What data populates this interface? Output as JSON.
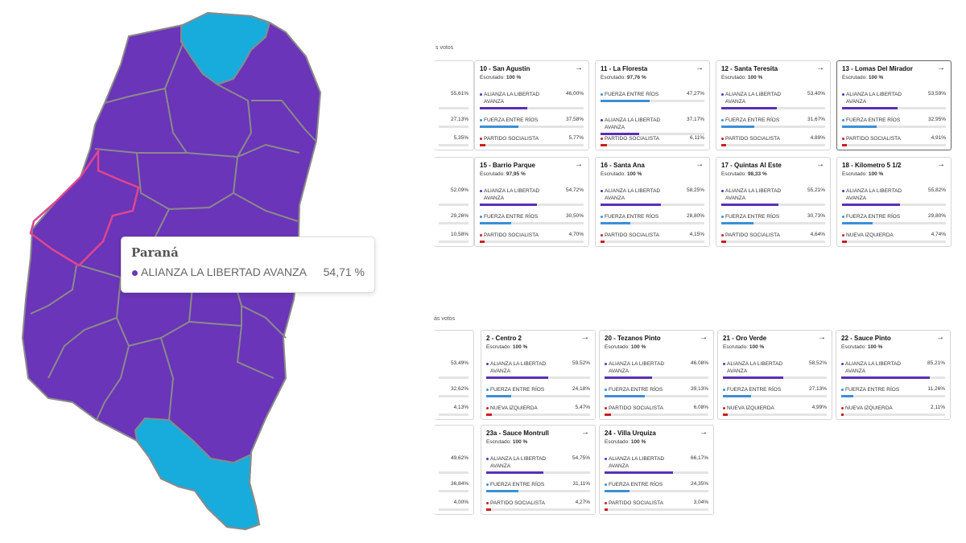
{
  "map": {
    "colors": {
      "purple": "#6a35b8",
      "cyan": "#17acdc",
      "border": "#8a8a8a",
      "highlight": "#e0458e"
    },
    "tooltip": {
      "title": "Paraná",
      "party": "ALIANZA LA LIBERTAD AVANZA",
      "pct": "54,71 %"
    }
  },
  "parties": {
    "lla": {
      "label": "ALIANZA LA LIBERTAD AVANZA",
      "color": "#5a2fb5"
    },
    "fer": {
      "label": "FUERZA ENTRE RÍOS",
      "color": "#3c8fd6"
    },
    "ps": {
      "label": "PARTIDO SOCIALISTA",
      "color": "#c9201f"
    },
    "ni": {
      "label": "NUEVA IZQUIERDA",
      "color": "#c9201f"
    }
  },
  "sections": [
    {
      "label": "s votos"
    },
    {
      "label": "ás votos"
    }
  ],
  "cards": [
    {
      "title": "",
      "sub_label": "",
      "sub_value": "",
      "partial": true,
      "rows": [
        {
          "p": "lla",
          "pct": "55,61%",
          "v": 55.61
        },
        {
          "p": "fer",
          "pct": "27,13%",
          "v": 27.13
        },
        {
          "p": "ps",
          "pct": "5,35%",
          "v": 5.35
        }
      ]
    },
    {
      "title": "10 - San Agustin",
      "sub_label": "Escrutado:",
      "sub_value": "100 %",
      "rows": [
        {
          "p": "lla",
          "pct": "46,00%",
          "v": 46.0
        },
        {
          "p": "fer",
          "pct": "37,58%",
          "v": 37.58
        },
        {
          "p": "ps",
          "pct": "5,77%",
          "v": 5.77
        }
      ]
    },
    {
      "title": "11 - La Floresta",
      "sub_label": "Escrutado:",
      "sub_value": "97,76 %",
      "rows": [
        {
          "p": "fer",
          "pct": "47,27%",
          "v": 47.27
        },
        {
          "p": "lla",
          "pct": "37,17%",
          "v": 37.17
        },
        {
          "p": "ps",
          "pct": "6,11%",
          "v": 6.11
        }
      ]
    },
    {
      "title": "12 - Santa Teresita",
      "sub_label": "Escrutado:",
      "sub_value": "100 %",
      "rows": [
        {
          "p": "lla",
          "pct": "53,40%",
          "v": 53.4
        },
        {
          "p": "fer",
          "pct": "31,67%",
          "v": 31.67
        },
        {
          "p": "ps",
          "pct": "4,89%",
          "v": 4.89
        }
      ]
    },
    {
      "title": "13 - Lomas Del Mirador",
      "sub_label": "Escrutado:",
      "sub_value": "100 %",
      "selected": true,
      "rows": [
        {
          "p": "lla",
          "pct": "53,59%",
          "v": 53.59
        },
        {
          "p": "fer",
          "pct": "32,95%",
          "v": 32.95
        },
        {
          "p": "ps",
          "pct": "4,91%",
          "v": 4.91
        }
      ]
    },
    {
      "title": "",
      "sub_label": "",
      "sub_value": "",
      "partial": true,
      "rows": [
        {
          "p": "lla",
          "pct": "52,09%",
          "v": 52.09
        },
        {
          "p": "fer",
          "pct": "29,26%",
          "v": 29.26
        },
        {
          "p": "ps",
          "pct": "10,58%",
          "v": 10.58
        }
      ]
    },
    {
      "title": "15 - Barrio Parque",
      "sub_label": "Escrutado:",
      "sub_value": "97,95 %",
      "rows": [
        {
          "p": "lla",
          "pct": "54,72%",
          "v": 54.72
        },
        {
          "p": "fer",
          "pct": "30,50%",
          "v": 30.5
        },
        {
          "p": "ps",
          "pct": "4,70%",
          "v": 4.7
        }
      ]
    },
    {
      "title": "16 - Santa Ana",
      "sub_label": "Escrutado:",
      "sub_value": "100 %",
      "rows": [
        {
          "p": "lla",
          "pct": "58,25%",
          "v": 58.25
        },
        {
          "p": "fer",
          "pct": "28,80%",
          "v": 28.8
        },
        {
          "p": "ps",
          "pct": "4,15%",
          "v": 4.15
        }
      ]
    },
    {
      "title": "17 - Quintas Al Este",
      "sub_label": "Escrutado:",
      "sub_value": "98,33 %",
      "rows": [
        {
          "p": "lla",
          "pct": "55,21%",
          "v": 55.21
        },
        {
          "p": "fer",
          "pct": "30,73%",
          "v": 30.73
        },
        {
          "p": "ps",
          "pct": "4,64%",
          "v": 4.64
        }
      ]
    },
    {
      "title": "18 - Kilometro 5 1/2",
      "sub_label": "Escrutado:",
      "sub_value": "100 %",
      "rows": [
        {
          "p": "lla",
          "pct": "55,82%",
          "v": 55.82
        },
        {
          "p": "fer",
          "pct": "29,80%",
          "v": 29.8
        },
        {
          "p": "ni",
          "pct": "4,74%",
          "v": 4.74
        }
      ]
    },
    {
      "title": "",
      "sub_label": "",
      "sub_value": "",
      "partial": true,
      "rows": [
        {
          "p": "lla",
          "pct": "53,49%",
          "v": 53.49
        },
        {
          "p": "fer",
          "pct": "32,62%",
          "v": 32.62
        },
        {
          "p": "ps",
          "pct": "4,13%",
          "v": 4.13
        }
      ]
    },
    {
      "title": "2 - Centro 2",
      "sub_label": "Escrutado:",
      "sub_value": "100 %",
      "rows": [
        {
          "p": "lla",
          "pct": "59,52%",
          "v": 59.52
        },
        {
          "p": "fer",
          "pct": "24,18%",
          "v": 24.18
        },
        {
          "p": "ni",
          "pct": "5,47%",
          "v": 5.47
        }
      ]
    },
    {
      "title": "20 - Tezanos Pinto",
      "sub_label": "Escrutado:",
      "sub_value": "100 %",
      "rows": [
        {
          "p": "lla",
          "pct": "46,08%",
          "v": 46.08
        },
        {
          "p": "fer",
          "pct": "39,13%",
          "v": 39.13
        },
        {
          "p": "ps",
          "pct": "6,08%",
          "v": 6.08
        }
      ]
    },
    {
      "title": "21 - Oro Verde",
      "sub_label": "Escrutado:",
      "sub_value": "100 %",
      "rows": [
        {
          "p": "lla",
          "pct": "58,52%",
          "v": 58.52
        },
        {
          "p": "fer",
          "pct": "27,13%",
          "v": 27.13
        },
        {
          "p": "ni",
          "pct": "4,99%",
          "v": 4.99
        }
      ]
    },
    {
      "title": "22 - Sauce Pinto",
      "sub_label": "Escrutado:",
      "sub_value": "100 %",
      "rows": [
        {
          "p": "lla",
          "pct": "85,21%",
          "v": 85.21
        },
        {
          "p": "fer",
          "pct": "11,26%",
          "v": 11.26
        },
        {
          "p": "ni",
          "pct": "2,11%",
          "v": 2.11
        }
      ]
    },
    {
      "title": "a",
      "sub_label": "",
      "sub_value": "",
      "partial": true,
      "rows": [
        {
          "p": "lla",
          "pct": "49,62%",
          "v": 49.62
        },
        {
          "p": "fer",
          "pct": "36,84%",
          "v": 36.84
        },
        {
          "p": "ps",
          "pct": "4,00%",
          "v": 4.0
        }
      ]
    },
    {
      "title": "23a - Sauce Montrull",
      "sub_label": "Escrutado:",
      "sub_value": "100 %",
      "rows": [
        {
          "p": "lla",
          "pct": "54,75%",
          "v": 54.75
        },
        {
          "p": "fer",
          "pct": "31,11%",
          "v": 31.11
        },
        {
          "p": "ps",
          "pct": "4,27%",
          "v": 4.27
        }
      ]
    },
    {
      "title": "24 - Villa Urquiza",
      "sub_label": "Escrutado:",
      "sub_value": "100 %",
      "rows": [
        {
          "p": "lla",
          "pct": "66,17%",
          "v": 66.17
        },
        {
          "p": "fer",
          "pct": "24,35%",
          "v": 24.35
        },
        {
          "p": "ps",
          "pct": "3,04%",
          "v": 3.04
        }
      ]
    }
  ]
}
